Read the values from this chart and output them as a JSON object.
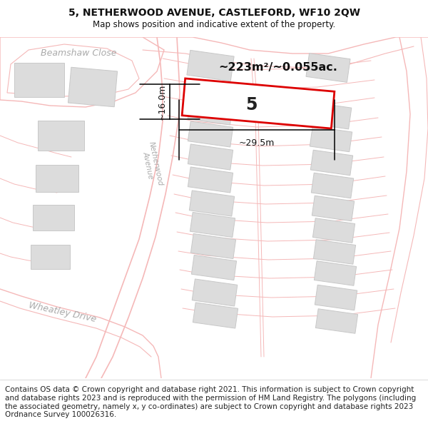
{
  "title": "5, NETHERWOOD AVENUE, CASTLEFORD, WF10 2QW",
  "subtitle": "Map shows position and indicative extent of the property.",
  "footer": "Contains OS data © Crown copyright and database right 2021. This information is subject to Crown copyright and database rights 2023 and is reproduced with the permission of HM Land Registry. The polygons (including the associated geometry, namely x, y co-ordinates) are subject to Crown copyright and database rights 2023 Ordnance Survey 100026316.",
  "road_color": "#f5b8b8",
  "building_color": "#dcdcdc",
  "building_edge": "#c8c8c8",
  "highlight_color": "#dd0000",
  "area_text": "~223m²/~0.055ac.",
  "label_5": "5",
  "dim_width": "~29.5m",
  "dim_height": "~16.0m",
  "title_fontsize": 10,
  "subtitle_fontsize": 9,
  "footer_fontsize": 7.5,
  "road_label_color": "#aaaaaa"
}
